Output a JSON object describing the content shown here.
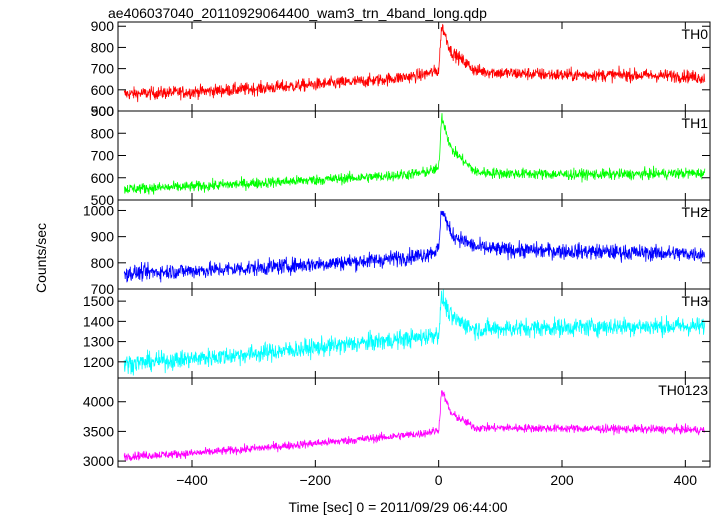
{
  "chart_data": {
    "type": "line",
    "title": "ae406037040_20110929064400_wam3_trn_4band_long.qdp",
    "xlabel": "Time [sec] 0 = 2011/09/29 06:44:00",
    "ylabel": "Counts/sec",
    "xlim": [
      -520,
      440
    ],
    "x_ticks": [
      -400,
      -200,
      0,
      200,
      400
    ],
    "x_tick_labels": [
      "−400",
      "−200",
      "0",
      "200",
      "400"
    ],
    "series": [
      {
        "name": "TH0",
        "color": "#ff0000",
        "ylim": [
          500,
          920
        ],
        "y_ticks": [
          500,
          600,
          700,
          800,
          900
        ],
        "x": [
          -510,
          -400,
          -300,
          -200,
          -100,
          -30,
          0,
          5,
          20,
          60,
          100,
          200,
          300,
          400,
          430
        ],
        "values": [
          580,
          590,
          605,
          625,
          645,
          668,
          690,
          905,
          780,
          690,
          680,
          670,
          670,
          665,
          655
        ],
        "noise": 30
      },
      {
        "name": "TH1",
        "color": "#00ff00",
        "ylim": [
          500,
          900
        ],
        "y_ticks": [
          500,
          600,
          700,
          800,
          900
        ],
        "x": [
          -510,
          -400,
          -300,
          -200,
          -100,
          -30,
          0,
          5,
          20,
          60,
          100,
          200,
          300,
          400,
          430
        ],
        "values": [
          550,
          560,
          575,
          590,
          605,
          620,
          640,
          880,
          730,
          625,
          620,
          615,
          615,
          620,
          620
        ],
        "noise": 24
      },
      {
        "name": "TH2",
        "color": "#0000ff",
        "ylim": [
          700,
          1040
        ],
        "y_ticks": [
          700,
          800,
          900,
          1000
        ],
        "x": [
          -510,
          -400,
          -300,
          -200,
          -100,
          -30,
          0,
          5,
          20,
          60,
          100,
          200,
          300,
          400,
          430
        ],
        "values": [
          760,
          770,
          780,
          795,
          810,
          828,
          850,
          1010,
          910,
          860,
          850,
          845,
          840,
          835,
          835
        ],
        "noise": 30
      },
      {
        "name": "TH3",
        "color": "#00ffff",
        "ylim": [
          1120,
          1560
        ],
        "y_ticks": [
          1200,
          1300,
          1400,
          1500
        ],
        "x": [
          -510,
          -400,
          -300,
          -200,
          -100,
          -30,
          0,
          5,
          20,
          60,
          100,
          200,
          300,
          400,
          430
        ],
        "values": [
          1190,
          1215,
          1240,
          1270,
          1300,
          1320,
          1340,
          1520,
          1420,
          1360,
          1365,
          1370,
          1375,
          1375,
          1375
        ],
        "noise": 45
      },
      {
        "name": "TH0123",
        "color": "#ff00ff",
        "ylim": [
          2900,
          4400
        ],
        "y_ticks": [
          3000,
          3500,
          4000
        ],
        "x": [
          -510,
          -400,
          -300,
          -200,
          -100,
          -30,
          0,
          5,
          20,
          60,
          100,
          200,
          300,
          400,
          430
        ],
        "values": [
          3080,
          3130,
          3210,
          3300,
          3390,
          3460,
          3520,
          4200,
          3800,
          3560,
          3560,
          3550,
          3540,
          3530,
          3520
        ],
        "noise": 70
      }
    ],
    "y_tick_labels_panel0_top": [
      "900",
      "800",
      "700",
      "600",
      "500"
    ],
    "legend": "none"
  }
}
